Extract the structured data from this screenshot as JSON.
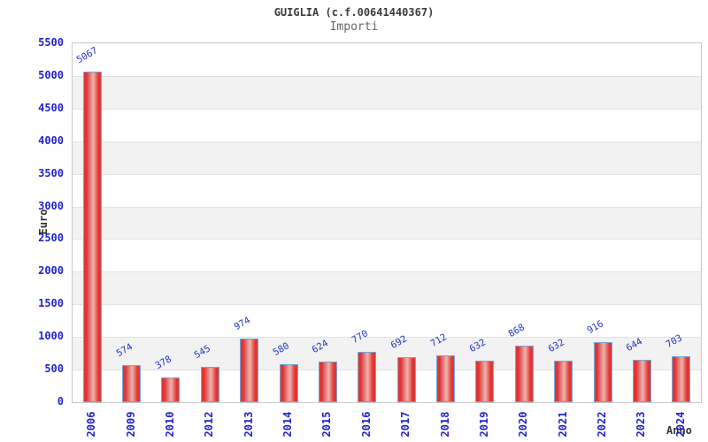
{
  "chart_data": {
    "type": "bar",
    "title": "GUIGLIA (c.f.00641440367)",
    "subtitle": "Importi",
    "xlabel": "Anno",
    "ylabel": "Euro",
    "categories": [
      "2006",
      "2009",
      "2010",
      "2012",
      "2013",
      "2014",
      "2015",
      "2016",
      "2017",
      "2018",
      "2019",
      "2020",
      "2021",
      "2022",
      "2023",
      "2024"
    ],
    "values": [
      5067,
      574,
      378,
      545,
      974,
      580,
      624,
      770,
      692,
      712,
      632,
      868,
      632,
      916,
      644,
      703
    ],
    "ylim": [
      0,
      5500
    ],
    "y_ticks": [
      0,
      500,
      1000,
      1500,
      2000,
      2500,
      3000,
      3500,
      4000,
      4500,
      5000,
      5500
    ],
    "grid": "horizontal-bands",
    "legend": "none",
    "colors": {
      "tick_label": "#2222cc",
      "value_label": "#2233cc",
      "bar_border": "#72a7d3",
      "bar_edge": "#e43232",
      "bar_center": "#efb4aa",
      "band_gray": "#f2f2f2",
      "band_white": "#ffffff",
      "grid_line": "#e2e2e2",
      "plot_border": "#c9c9c9",
      "title_color": "#3c3c3c",
      "subtitle_color": "#666666",
      "axis_title_color": "#333333"
    }
  }
}
